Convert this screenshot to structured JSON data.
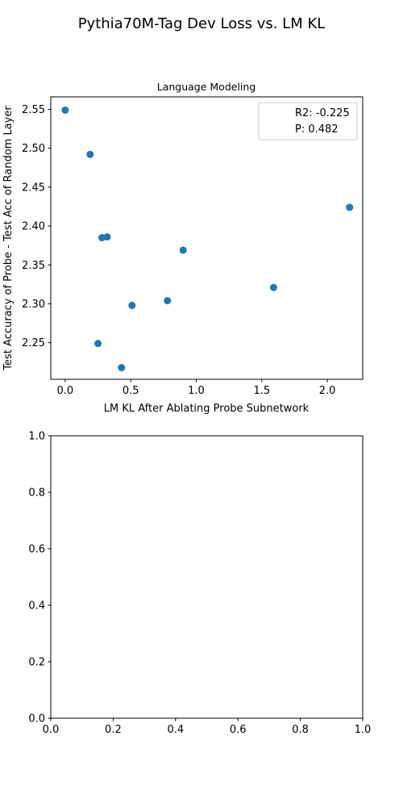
{
  "figure": {
    "suptitle": "Pythia70M-Tag Dev Loss vs. LM KL"
  },
  "chart_data": [
    {
      "type": "scatter",
      "title": "Language Modeling",
      "xlabel": "LM KL After Ablating Probe Subnetwork",
      "ylabel": "Test Accuracy of Probe - Test Acc of Random Layer",
      "xlim": [
        -0.11,
        2.27
      ],
      "ylim": [
        2.203,
        2.566
      ],
      "xticks": [
        0.0,
        0.5,
        1.0,
        1.5,
        2.0
      ],
      "xtick_labels": [
        "0.0",
        "0.5",
        "1.0",
        "1.5",
        "2.0"
      ],
      "yticks": [
        2.25,
        2.3,
        2.35,
        2.4,
        2.45,
        2.5,
        2.55
      ],
      "ytick_labels": [
        "2.25",
        "2.30",
        "2.35",
        "2.40",
        "2.45",
        "2.50",
        "2.55"
      ],
      "grid": false,
      "legend": {
        "placement": "top-right",
        "entries": [
          "R2: -0.225",
          "P: 0.482"
        ]
      },
      "marker_color": "#1f77b4",
      "points": [
        {
          "x": 0.0,
          "y": 2.549
        },
        {
          "x": 0.19,
          "y": 2.492
        },
        {
          "x": 0.28,
          "y": 2.385
        },
        {
          "x": 0.32,
          "y": 2.386
        },
        {
          "x": 0.25,
          "y": 2.249
        },
        {
          "x": 0.43,
          "y": 2.218
        },
        {
          "x": 0.51,
          "y": 2.298
        },
        {
          "x": 0.78,
          "y": 2.304
        },
        {
          "x": 0.9,
          "y": 2.369
        },
        {
          "x": 1.59,
          "y": 2.321
        },
        {
          "x": 2.17,
          "y": 2.424
        }
      ]
    },
    {
      "type": "scatter",
      "title": "",
      "xlabel": "",
      "ylabel": "",
      "xlim": [
        0.0,
        1.0
      ],
      "ylim": [
        0.0,
        1.0
      ],
      "xticks": [
        0.0,
        0.2,
        0.4,
        0.6,
        0.8,
        1.0
      ],
      "xtick_labels": [
        "0.0",
        "0.2",
        "0.4",
        "0.6",
        "0.8",
        "1.0"
      ],
      "yticks": [
        0.0,
        0.2,
        0.4,
        0.6,
        0.8,
        1.0
      ],
      "ytick_labels": [
        "0.0",
        "0.2",
        "0.4",
        "0.6",
        "0.8",
        "1.0"
      ],
      "grid": false,
      "points": []
    }
  ]
}
